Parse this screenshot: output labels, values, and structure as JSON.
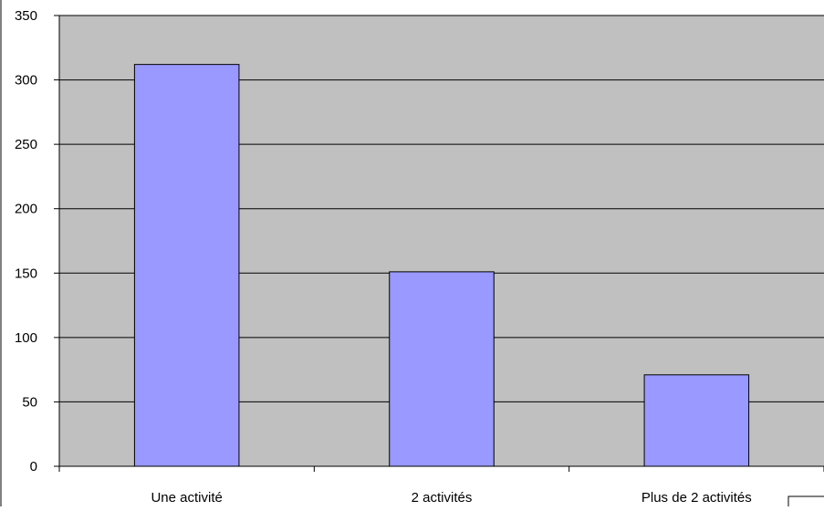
{
  "colors": {
    "plot_background": "#c0c0c0",
    "bar_fill": "#9999ff",
    "bar_stroke": "#000000",
    "gridline": "#000000",
    "page_background": "#ffffff"
  },
  "chart_data": {
    "type": "bar",
    "categories": [
      "Une activité",
      "2 activités",
      "Plus de 2 activités"
    ],
    "values": [
      312,
      151,
      71
    ],
    "title": "",
    "xlabel": "",
    "ylabel": "",
    "ylim": [
      0,
      350
    ],
    "yticks": [
      0,
      50,
      100,
      150,
      200,
      250,
      300,
      350
    ],
    "ytick_labels": [
      "0",
      "50",
      "100",
      "150",
      "200",
      "250",
      "300",
      "350"
    ],
    "grid": true,
    "legend": "none"
  }
}
